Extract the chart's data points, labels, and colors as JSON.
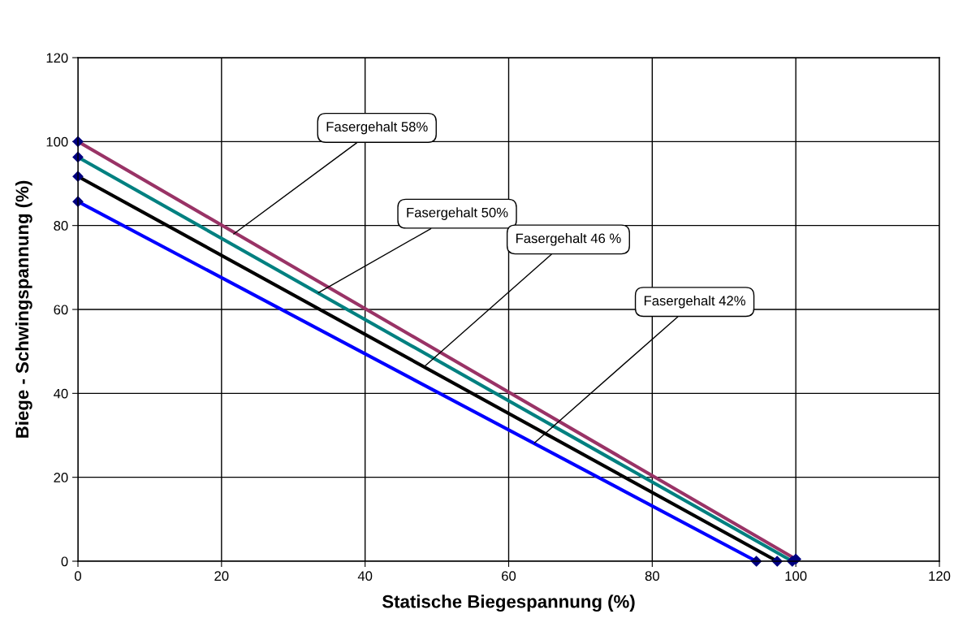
{
  "chart_data": {
    "type": "line",
    "xlabel": "Statische Biegespannung (%)",
    "ylabel": "Biege - Schwingspannung (%)",
    "xlim": [
      0,
      120
    ],
    "xticks": [
      0,
      20,
      40,
      60,
      80,
      100,
      120
    ],
    "ylim": [
      0,
      120
    ],
    "yticks": [
      0,
      20,
      40,
      60,
      80,
      100,
      120
    ],
    "grid": true,
    "marker": "diamond",
    "line_style": "solid",
    "series": [
      {
        "color": "#993366",
        "x": [
          0,
          100
        ],
        "values": [
          100,
          0.5
        ]
      },
      {
        "color": "#008080",
        "x": [
          0,
          99.5
        ],
        "values": [
          96.3,
          0
        ]
      },
      {
        "color": "#000000",
        "x": [
          0,
          97.4
        ],
        "values": [
          91.7,
          0
        ]
      },
      {
        "color": "#0000ff",
        "x": [
          0,
          94.5
        ],
        "values": [
          85.7,
          0
        ]
      }
    ],
    "annotations": [
      {
        "text": "Fasergehalt 58%",
        "x": 21.7,
        "y": 78
      },
      {
        "text": "Fasergehalt 50%",
        "x": 33.5,
        "y": 64
      },
      {
        "text": "Fasergehalt 46 %",
        "x": 48.2,
        "y": 46.3
      },
      {
        "text": "Fasergehalt 42%",
        "x": 63.6,
        "y": 28.2
      }
    ]
  }
}
